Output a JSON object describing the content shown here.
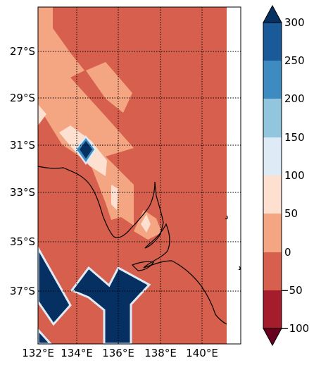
{
  "map": {
    "lat_labels": [
      "27°S",
      "29°S",
      "31°S",
      "33°S",
      "35°S",
      "37°S"
    ],
    "lon_labels": [
      "132°E",
      "134°E",
      "136°E",
      "138°E",
      "140°E"
    ],
    "gridlines": true
  },
  "colorbar": {
    "tick_labels": [
      "300",
      "250",
      "200",
      "150",
      "100",
      "50",
      "0",
      "−50",
      "−100"
    ],
    "extend": "both",
    "colors": {
      "over": "#053061",
      "250_300": "#1b5a98",
      "200_250": "#3e8bc2",
      "150_200": "#92c5de",
      "100_150": "#deebf7",
      "50_100": "#fde0d0",
      "0_50": "#f4a582",
      "m50_0": "#d6604d",
      "m100_m50": "#a51d2c",
      "under": "#67001f"
    }
  }
}
